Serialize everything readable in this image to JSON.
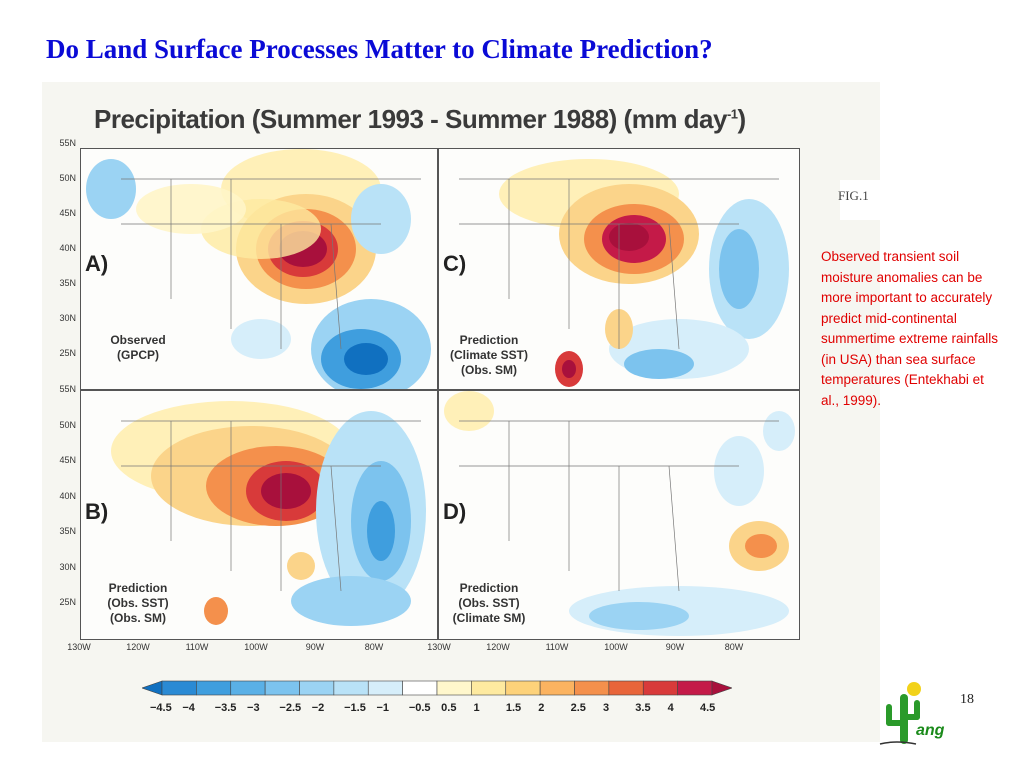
{
  "slide": {
    "title": "Do Land Surface Processes Matter to Climate Prediction?",
    "page_number": "18",
    "note": "Observed transient soil moisture anomalies can be more important to accurately predict mid-continental summertime extreme rainfalls (in USA) than sea surface temperatures (Entekhabi et al., 1999).",
    "logo_text": "ang"
  },
  "figure": {
    "title_main": "Precipitation (Summer 1993 - Summer 1988) (mm day",
    "title_sup": "-1",
    "title_end": ")",
    "fig_label": "FIG.1",
    "latitudes": [
      "55N",
      "50N",
      "45N",
      "40N",
      "35N",
      "30N",
      "25N"
    ],
    "longitudes": [
      "130W",
      "120W",
      "110W",
      "100W",
      "90W",
      "80W"
    ],
    "panels": [
      {
        "letter": "A)",
        "caption_lines": [
          "Observed",
          "(GPCP)"
        ]
      },
      {
        "letter": "C)",
        "caption_lines": [
          "Prediction",
          "(Climate SST)",
          "(Obs. SM)"
        ]
      },
      {
        "letter": "B)",
        "caption_lines": [
          "Prediction",
          "(Obs. SST)",
          "(Obs. SM)"
        ]
      },
      {
        "letter": "D)",
        "caption_lines": [
          "Prediction",
          "(Obs. SST)",
          "(Climate SM)"
        ]
      }
    ],
    "colorbar": {
      "labels": [
        "−4.5",
        "−4",
        "−3.5",
        "−3",
        "−2.5",
        "−2",
        "−1.5",
        "−1",
        "−0.5",
        "0.5",
        "1",
        "1.5",
        "2",
        "2.5",
        "3",
        "3.5",
        "4",
        "4.5"
      ],
      "colors": [
        "#1070c0",
        "#2a8ad4",
        "#3f9ede",
        "#5ab0e6",
        "#7cc3ee",
        "#9bd3f3",
        "#b9e2f7",
        "#d6eefa",
        "#ffffff",
        "#fff7cc",
        "#feeaa0",
        "#fdd27a",
        "#fbb360",
        "#f4904c",
        "#e8653a",
        "#d83a3a",
        "#c41a48",
        "#a8103c"
      ]
    }
  }
}
